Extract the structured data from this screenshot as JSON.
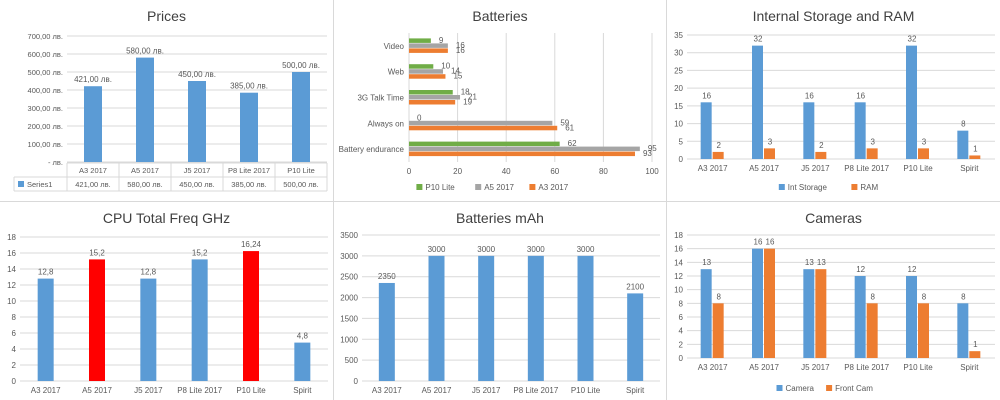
{
  "colors": {
    "blue": "#5b9bd5",
    "orange": "#ed7d31",
    "gray": "#a5a5a5",
    "green": "#70ad47",
    "red": "#ff0000",
    "grid": "#d9d9d9",
    "text": "#595959"
  },
  "charts": {
    "prices": {
      "chart_data": {
        "type": "bar",
        "title": "Prices",
        "categories": [
          "A3 2017",
          "A5 2017",
          "J5 2017",
          "P8 Lite 2017",
          "P10 Lite"
        ],
        "series": [
          {
            "name": "Series1",
            "values": [
              421,
              580,
              450,
              385,
              500
            ],
            "labels": [
              "421,00 лв.",
              "580,00 лв.",
              "450,00 лв.",
              "385,00 лв.",
              "500,00 лв."
            ]
          }
        ],
        "ylim": [
          0,
          700
        ],
        "yticks": [
          " -   лв.",
          "100,00 лв.",
          "200,00 лв.",
          "300,00 лв.",
          "400,00 лв.",
          "500,00 лв.",
          "600,00 лв.",
          "700,00 лв."
        ],
        "legend": "data-table"
      }
    },
    "batteries": {
      "chart_data": {
        "type": "bar",
        "orientation": "horizontal",
        "title": "Batteries",
        "categories": [
          "Battery endurance",
          "Always on",
          "3G Talk Time",
          "Web",
          "Video"
        ],
        "series": [
          {
            "name": "A3 2017",
            "color": "orange",
            "values": [
              93,
              61,
              19,
              15,
              16
            ]
          },
          {
            "name": "A5 2017",
            "color": "gray",
            "values": [
              95,
              59,
              21,
              14,
              16
            ]
          },
          {
            "name": "P10 Lite",
            "color": "green",
            "values": [
              62,
              0,
              18,
              10,
              9
            ]
          }
        ],
        "legend_order": [
          "P10 Lite",
          "A5 2017",
          "A3 2017"
        ],
        "xlim": [
          0,
          100
        ],
        "xticks": [
          "0",
          "20",
          "40",
          "60",
          "80",
          "100"
        ],
        "legend": "bottom"
      }
    },
    "storage": {
      "chart_data": {
        "type": "bar",
        "title": "Internal Storage and RAM",
        "categories": [
          "A3 2017",
          "A5 2017",
          "J5 2017",
          "P8 Lite 2017",
          "P10 Lite",
          "Spirit"
        ],
        "series": [
          {
            "name": "Int Storage",
            "color": "blue",
            "values": [
              16,
              32,
              16,
              16,
              32,
              8
            ]
          },
          {
            "name": "RAM",
            "color": "orange",
            "values": [
              2,
              3,
              2,
              3,
              3,
              1
            ]
          }
        ],
        "ylim": [
          0,
          35
        ],
        "yticks": [
          "0",
          "5",
          "10",
          "15",
          "20",
          "25",
          "30",
          "35"
        ],
        "legend": "bottom"
      }
    },
    "cpu": {
      "chart_data": {
        "type": "bar",
        "title": "CPU Total Freq GHz",
        "categories": [
          "A3 2017",
          "A5 2017",
          "J5 2017",
          "P8 Lite 2017",
          "P10 Lite",
          "Spirit"
        ],
        "series": [
          {
            "values": [
              12.8,
              15.2,
              12.8,
              15.2,
              16.24,
              4.8
            ],
            "labels": [
              "12,8",
              "15,2",
              "12,8",
              "15,2",
              "16,24",
              "4,8"
            ],
            "colors": [
              "blue",
              "red",
              "blue",
              "blue",
              "red",
              "blue"
            ]
          }
        ],
        "ylim": [
          0,
          18
        ],
        "yticks": [
          "0",
          "2",
          "4",
          "6",
          "8",
          "10",
          "12",
          "14",
          "16",
          "18"
        ]
      }
    },
    "mah": {
      "chart_data": {
        "type": "bar",
        "title": "Batteries mAh",
        "categories": [
          "A3 2017",
          "A5 2017",
          "J5 2017",
          "P8 Lite 2017",
          "P10 Lite",
          "Spirit"
        ],
        "series": [
          {
            "values": [
              2350,
              3000,
              3000,
              3000,
              3000,
              2100
            ]
          }
        ],
        "ylim": [
          0,
          3500
        ],
        "yticks": [
          "0",
          "500",
          "1000",
          "1500",
          "2000",
          "2500",
          "3000",
          "3500"
        ]
      }
    },
    "cameras": {
      "chart_data": {
        "type": "bar",
        "title": "Cameras",
        "categories": [
          "A3 2017",
          "A5 2017",
          "J5 2017",
          "P8 Lite 2017",
          "P10 Lite",
          "Spirit"
        ],
        "series": [
          {
            "name": "Camera",
            "color": "blue",
            "values": [
              13,
              16,
              13,
              12,
              12,
              8
            ]
          },
          {
            "name": "Front Cam",
            "color": "orange",
            "values": [
              8,
              16,
              13,
              8,
              8,
              1
            ]
          }
        ],
        "ylim": [
          0,
          18
        ],
        "yticks": [
          "0",
          "2",
          "4",
          "6",
          "8",
          "10",
          "12",
          "14",
          "16",
          "18"
        ],
        "legend": "bottom"
      }
    }
  }
}
